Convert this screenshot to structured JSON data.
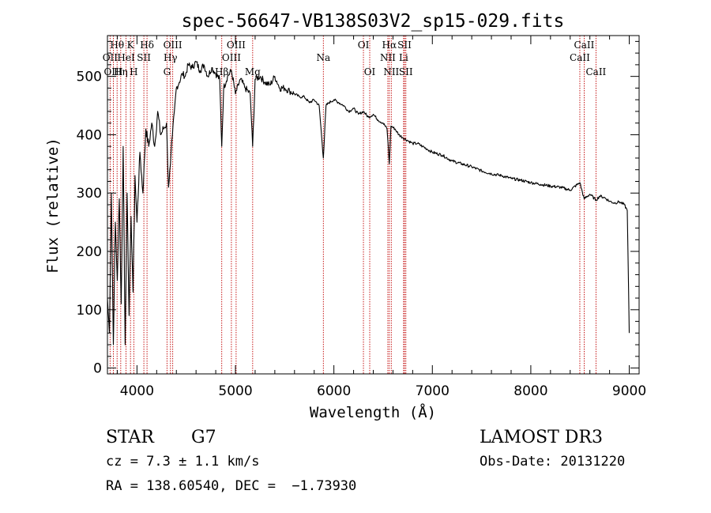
{
  "chart_data": {
    "type": "line",
    "title": "spec-56647-VB138S03V2_sp15-029.fits",
    "xlabel": "Wavelength (Å)",
    "ylabel": "Flux (relative)",
    "xlim": [
      3700,
      9100
    ],
    "ylim": [
      -10,
      570
    ],
    "xticks": [
      4000,
      5000,
      6000,
      7000,
      8000,
      9000
    ],
    "xtick_labels": [
      "4000",
      "5000",
      "6000",
      "7000",
      "8000",
      "9000"
    ],
    "yticks": [
      0,
      100,
      200,
      300,
      400,
      500
    ],
    "ytick_labels": [
      "0",
      "100",
      "200",
      "300",
      "400",
      "500"
    ],
    "series": [
      {
        "name": "spectrum",
        "x": [
          3700,
          3720,
          3740,
          3760,
          3780,
          3800,
          3820,
          3840,
          3860,
          3880,
          3900,
          3920,
          3940,
          3960,
          3980,
          4000,
          4030,
          4060,
          4090,
          4120,
          4150,
          4180,
          4210,
          4240,
          4270,
          4300,
          4320,
          4340,
          4360,
          4380,
          4400,
          4430,
          4460,
          4490,
          4520,
          4560,
          4600,
          4640,
          4680,
          4720,
          4760,
          4800,
          4840,
          4861,
          4880,
          4920,
          4960,
          5000,
          5050,
          5100,
          5150,
          5175,
          5200,
          5250,
          5300,
          5350,
          5400,
          5450,
          5500,
          5550,
          5600,
          5650,
          5700,
          5750,
          5800,
          5850,
          5893,
          5920,
          5950,
          6000,
          6050,
          6100,
          6150,
          6200,
          6250,
          6300,
          6350,
          6400,
          6450,
          6500,
          6540,
          6563,
          6580,
          6620,
          6660,
          6700,
          6750,
          6800,
          6850,
          6900,
          6950,
          7000,
          7100,
          7200,
          7300,
          7400,
          7500,
          7600,
          7700,
          7800,
          7900,
          8000,
          8100,
          8200,
          8300,
          8400,
          8498,
          8542,
          8600,
          8662,
          8700,
          8750,
          8800,
          8850,
          8900,
          8950,
          8980,
          9000
        ],
        "y": [
          120,
          60,
          300,
          40,
          250,
          150,
          290,
          110,
          380,
          40,
          300,
          90,
          260,
          130,
          330,
          250,
          370,
          300,
          410,
          380,
          420,
          380,
          440,
          400,
          410,
          420,
          310,
          350,
          400,
          440,
          480,
          490,
          505,
          500,
          520,
          515,
          525,
          510,
          520,
          500,
          515,
          505,
          495,
          380,
          480,
          500,
          510,
          470,
          495,
          480,
          470,
          380,
          495,
          500,
          490,
          485,
          500,
          480,
          480,
          475,
          470,
          465,
          465,
          455,
          460,
          450,
          360,
          450,
          455,
          460,
          455,
          450,
          440,
          445,
          435,
          440,
          430,
          435,
          425,
          420,
          410,
          350,
          415,
          410,
          400,
          395,
          390,
          385,
          385,
          380,
          375,
          370,
          365,
          355,
          350,
          345,
          338,
          333,
          330,
          325,
          322,
          318,
          315,
          312,
          310,
          305,
          318,
          290,
          298,
          288,
          295,
          292,
          286,
          283,
          285,
          280,
          270,
          60
        ]
      }
    ],
    "annotations": [
      {
        "label": "Hθ",
        "x": 3798,
        "row": 1
      },
      {
        "label": "OII",
        "x": 3727,
        "row": 2
      },
      {
        "label": "OIII",
        "x": 3760,
        "row": 3
      },
      {
        "label": "Hη",
        "x": 3835,
        "row": 3
      },
      {
        "label": "HeI",
        "x": 3889,
        "row": 2
      },
      {
        "label": "K",
        "x": 3934,
        "row": 1
      },
      {
        "label": "H",
        "x": 3968,
        "row": 3
      },
      {
        "label": "SII",
        "x": 4070,
        "row": 2
      },
      {
        "label": "Hδ",
        "x": 4102,
        "row": 1
      },
      {
        "label": "OIII",
        "x": 4363,
        "row": 1
      },
      {
        "label": "Hγ",
        "x": 4340,
        "row": 2
      },
      {
        "label": "G",
        "x": 4305,
        "row": 3
      },
      {
        "label": "Hβ",
        "x": 4861,
        "row": 3
      },
      {
        "label": "OIII",
        "x": 5007,
        "row": 1
      },
      {
        "label": "OIII",
        "x": 4959,
        "row": 2
      },
      {
        "label": "Mg",
        "x": 5175,
        "row": 3
      },
      {
        "label": "Na",
        "x": 5893,
        "row": 2
      },
      {
        "label": "OI",
        "x": 6300,
        "row": 1
      },
      {
        "label": "OI",
        "x": 6364,
        "row": 3
      },
      {
        "label": "Hα",
        "x": 6563,
        "row": 1
      },
      {
        "label": "NII",
        "x": 6548,
        "row": 2
      },
      {
        "label": "NII",
        "x": 6583,
        "row": 3
      },
      {
        "label": "SII",
        "x": 6717,
        "row": 1
      },
      {
        "label": "Li",
        "x": 6708,
        "row": 2
      },
      {
        "label": "SII",
        "x": 6731,
        "row": 3
      },
      {
        "label": "CaII",
        "x": 8542,
        "row": 1
      },
      {
        "label": "CaII",
        "x": 8498,
        "row": 2
      },
      {
        "label": "CaII",
        "x": 8662,
        "row": 3
      }
    ]
  },
  "footer": {
    "object_type": "STAR",
    "subclass": "G7",
    "survey": "LAMOST DR3",
    "redshift": "cz = 7.3 ± 1.1 km/s",
    "obs_date": "Obs-Date: 20131220",
    "coords": "RA = 138.60540, DEC =  −1.73930"
  }
}
